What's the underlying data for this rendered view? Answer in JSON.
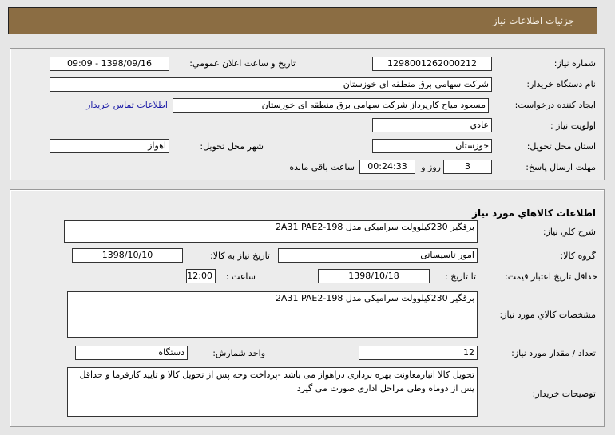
{
  "header": {
    "title": "جزئیات اطلاعات نیاز"
  },
  "need": {
    "number_label": "شماره نیاز:",
    "number": "1298001262000212",
    "announce_label": "تاريخ و ساعت اعلان عمومي:",
    "announce": "1398/09/16 - 09:09",
    "buyer_label": "نام دستگاه خريدار:",
    "buyer": "شرکت سهامی برق منطقه ای خوزستان",
    "creator_label": "ايجاد کننده درخواست:",
    "creator": "مسعود میاح کارپرداز شرکت سهامی برق منطقه ای خوزستان",
    "contact_link": "اطلاعات تماس خريدار",
    "priority_label": "اولويت نياز :",
    "priority": "عادي",
    "province_label": "استان محل تحويل:",
    "province": "خوزستان",
    "city_label": "شهر محل تحويل:",
    "city": "اهواز",
    "deadline_label": "مهلت ارسال پاسخ:",
    "days": "3",
    "days_suffix": "روز و",
    "time": "00:24:33",
    "time_suffix": "ساعت باقي مانده"
  },
  "goods": {
    "title": "اطلاعات کالاهاي مورد نياز",
    "summary_label": "شرح کلي نياز:",
    "summary": "برقگیر 230کیلوولت سرامیکی مدل 198-2A31  PAE2",
    "group_label": "گروه کالا:",
    "group": "امور تاسیساتی",
    "need_date_label": "تاريخ نياز به کالا:",
    "need_date": "1398/10/10",
    "price_label": "حداقل تاريخ اعتبار قيمت:",
    "to_date_label": "تا تاريخ :",
    "to_date": "1398/10/18",
    "hour_label": "ساعت :",
    "hour": "12:00",
    "specs_label": "مشخصات کالاي مورد نياز:",
    "specs": "برقگیر 230کیلوولت سرامیکی مدل 198-2A31  PAE2",
    "qty_label": "تعداد / مقدار مورد نياز:",
    "qty": "12",
    "unit_label": "واحد شمارش:",
    "unit": "دستگاه",
    "desc_label": "توضيحات خريدار:",
    "desc": "تحویل کالا انبارمعاونت بهره برداری دراهواز می باشد -پرداخت وجه پس از تحویل کالا و تایید کارفرما و حداقل پس از دوماه وطی مراحل اداری صورت می گیرد"
  }
}
